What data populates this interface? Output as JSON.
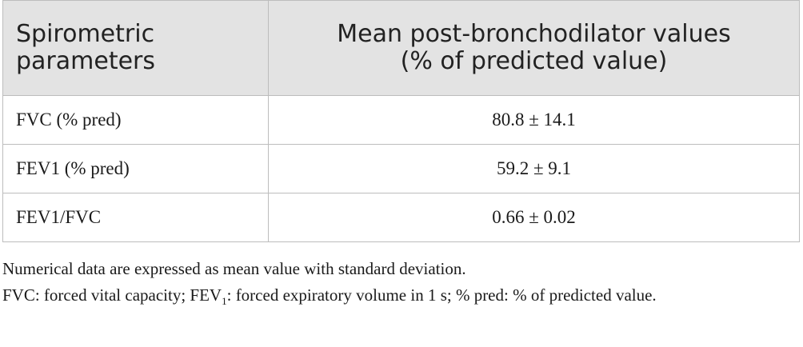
{
  "table": {
    "headers": {
      "col1": [
        "Spirometric",
        "parameters"
      ],
      "col2": [
        "Mean post-bronchodilator values",
        "(% of predicted value)"
      ]
    },
    "rows": [
      {
        "parameter": "FVC (% pred)",
        "value": "80.8 ± 14.1"
      },
      {
        "parameter": "FEV1 (% pred)",
        "value": "59.2 ± 9.1"
      },
      {
        "parameter": "FEV1/FVC",
        "value": "0.66 ± 0.02"
      }
    ]
  },
  "footnotes": {
    "line1": "Numerical data are expressed as mean value with standard deviation.",
    "line2_pre": "FVC: forced vital capacity; FEV",
    "line2_sub": "1",
    "line2_post": ": forced expiratory volume in 1 s; % pred: % of predicted value."
  }
}
